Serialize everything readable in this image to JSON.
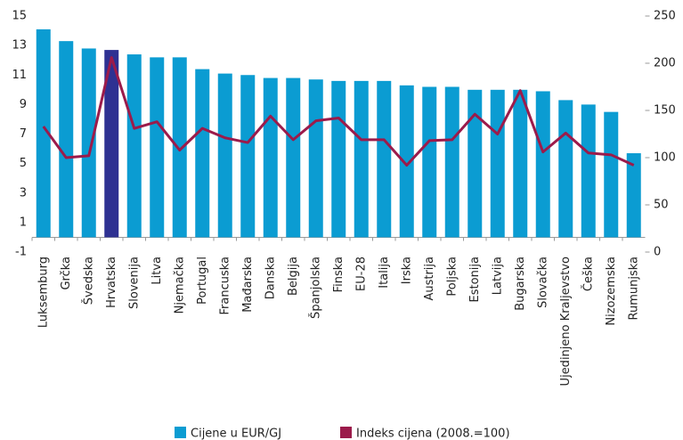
{
  "chart_data": {
    "type": "bar_line",
    "categories": [
      "Luksemburg",
      "Grčka",
      "Švedska",
      "Hrvatska",
      "Slovenija",
      "Litva",
      "Njemačka",
      "Portugal",
      "Francuska",
      "Mađarska",
      "Danska",
      "Belgija",
      "Španjolska",
      "Finska",
      "EU-28",
      "Italija",
      "Irska",
      "Austrija",
      "Poljska",
      "Estonija",
      "Latvija",
      "Bugarska",
      "Slovačka",
      "Ujedinjeno Kraljevstvo",
      "Češka",
      "Nizozemska",
      "Rumunjska"
    ],
    "series": [
      {
        "name": "Cijene u EUR/GJ",
        "type": "bar",
        "color": "#0b9cd2",
        "axis": "y",
        "colors": [
          "#0b9cd2",
          "#0b9cd2",
          "#0b9cd2",
          "#2e3192",
          "#0b9cd2",
          "#0b9cd2",
          "#0b9cd2",
          "#0b9cd2",
          "#0b9cd2",
          "#0b9cd2",
          "#0b9cd2",
          "#0b9cd2",
          "#0b9cd2",
          "#0b9cd2",
          "#0b9cd2",
          "#0b9cd2",
          "#0b9cd2",
          "#0b9cd2",
          "#0b9cd2",
          "#0b9cd2",
          "#0b9cd2",
          "#0b9cd2",
          "#0b9cd2",
          "#0b9cd2",
          "#0b9cd2",
          "#0b9cd2",
          "#0b9cd2"
        ],
        "values": [
          14.1,
          13.3,
          12.8,
          12.7,
          12.4,
          12.2,
          12.2,
          11.4,
          11.1,
          11.0,
          10.8,
          10.8,
          10.7,
          10.6,
          10.6,
          10.6,
          10.3,
          10.2,
          10.2,
          10.0,
          10.0,
          10.0,
          9.9,
          9.3,
          9.0,
          8.5,
          5.7
        ]
      },
      {
        "name": "Indeks cijena (2008.=100)",
        "type": "line",
        "color": "#9b1b4b",
        "axis": "y2",
        "values": [
          133,
          100,
          102,
          206,
          131,
          138,
          108,
          131,
          121,
          116,
          144,
          119,
          139,
          142,
          119,
          119,
          92,
          118,
          119,
          146,
          125,
          171,
          106,
          126,
          105,
          103,
          92
        ]
      }
    ],
    "ylim": [
      -1,
      15
    ],
    "yticks": [
      -1,
      1,
      3,
      5,
      7,
      9,
      11,
      13,
      15
    ],
    "y2lim": [
      0,
      250
    ],
    "y2ticks": [
      0,
      50,
      100,
      150,
      200,
      250
    ]
  }
}
